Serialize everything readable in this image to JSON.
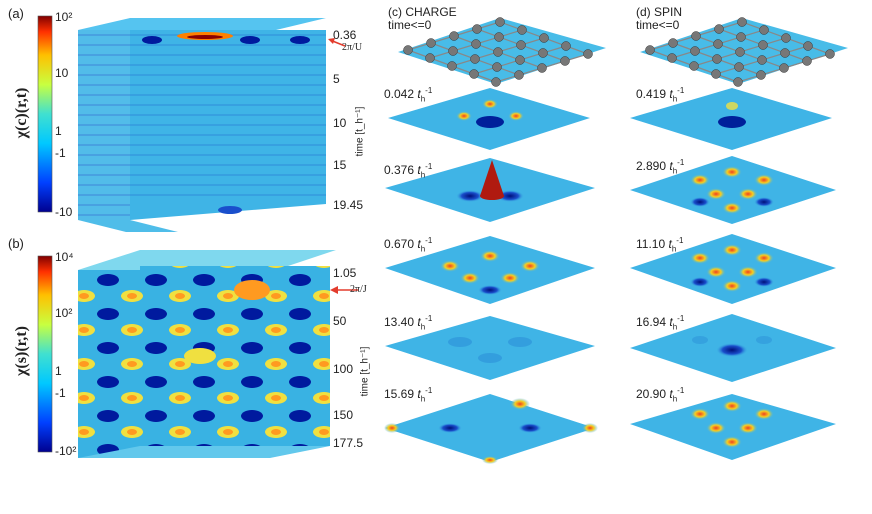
{
  "panels": {
    "a": {
      "label": "(a)",
      "ylabel": "χ(c)(r,t)",
      "colorbar_ticks": [
        "10²",
        "10",
        "1",
        "-1",
        "-10"
      ],
      "time_ticks": [
        "0.36",
        "5",
        "10",
        "15",
        "19.45"
      ],
      "marker": "2π/U",
      "time_axis_label": "time [t_h⁻¹]"
    },
    "b": {
      "label": "(b)",
      "ylabel": "χ(s)(r,t)",
      "colorbar_ticks": [
        "10⁴",
        "10²",
        "1",
        "-1",
        "-10²"
      ],
      "time_ticks": [
        "1.05",
        "50",
        "100",
        "150",
        "177.5"
      ],
      "marker": "2π/J",
      "time_axis_label": "time [t_h⁻¹]"
    },
    "c": {
      "label": "(c) CHARGE",
      "subtitle": "time<=0",
      "times": [
        "0.042",
        "0.376",
        "0.670",
        "13.40",
        "15.69"
      ]
    },
    "d": {
      "label": "(d) SPIN",
      "subtitle": "time<=0",
      "times": [
        "0.419",
        "2.890",
        "11.10",
        "16.94",
        "20.90"
      ]
    }
  },
  "unit": "t",
  "colors": {
    "base": "#3fb4e6",
    "accent_red": "#d63a2a",
    "arrow": "#e33c2d"
  }
}
